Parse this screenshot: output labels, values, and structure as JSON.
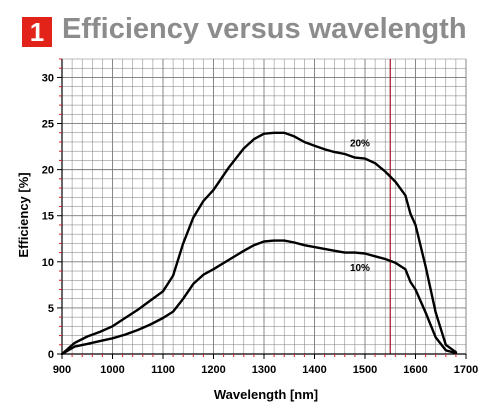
{
  "header": {
    "badge": "1",
    "title": "Efficiency versus wavelength"
  },
  "colors": {
    "grid": "#7a7a7a",
    "axis_minor_ticks": "#d0202a",
    "marker_line": "#a01020",
    "curve": "#000000",
    "badge": "#e2231a",
    "title": "#8c8c8c"
  },
  "chart_data": {
    "type": "line",
    "xlabel": "Wavelength [nm]",
    "ylabel": "Efficiency [%]",
    "xlim": [
      900,
      1700
    ],
    "ylim": [
      0,
      32
    ],
    "xticks": [
      "900",
      "1000",
      "1100",
      "1200",
      "1300",
      "1400",
      "1500",
      "1600",
      "1700"
    ],
    "yticks": [
      "0",
      "5",
      "10",
      "15",
      "20",
      "25",
      "30"
    ],
    "grid": true,
    "vertical_marker_x": 1550,
    "series": [
      {
        "name": "20%",
        "x": [
          900,
          925,
          950,
          975,
          1000,
          1025,
          1050,
          1075,
          1100,
          1120,
          1140,
          1160,
          1180,
          1200,
          1230,
          1260,
          1280,
          1300,
          1320,
          1340,
          1360,
          1380,
          1400,
          1420,
          1440,
          1460,
          1480,
          1500,
          1520,
          1540,
          1560,
          1580,
          1590,
          1600,
          1620,
          1640,
          1660,
          1680
        ],
        "y": [
          0,
          1.2,
          1.9,
          2.4,
          3.0,
          3.9,
          4.8,
          5.8,
          6.8,
          8.5,
          12,
          14.8,
          16.6,
          17.8,
          20.2,
          22.3,
          23.3,
          23.9,
          24.0,
          24.0,
          23.6,
          23.0,
          22.6,
          22.2,
          21.9,
          21.7,
          21.3,
          21.2,
          20.7,
          19.8,
          18.7,
          17.2,
          15.2,
          14.0,
          9.5,
          4.5,
          1.0,
          0.2
        ]
      },
      {
        "name": "10%",
        "x": [
          900,
          925,
          950,
          975,
          1000,
          1025,
          1050,
          1075,
          1100,
          1120,
          1140,
          1160,
          1180,
          1200,
          1230,
          1260,
          1280,
          1300,
          1320,
          1340,
          1360,
          1380,
          1400,
          1420,
          1440,
          1460,
          1480,
          1500,
          1520,
          1540,
          1560,
          1580,
          1590,
          1600,
          1620,
          1640,
          1660,
          1680
        ],
        "y": [
          0,
          0.8,
          1.1,
          1.4,
          1.7,
          2.1,
          2.6,
          3.2,
          3.9,
          4.6,
          6.0,
          7.6,
          8.6,
          9.2,
          10.2,
          11.2,
          11.8,
          12.2,
          12.3,
          12.3,
          12.1,
          11.8,
          11.6,
          11.4,
          11.2,
          11.0,
          11.0,
          10.9,
          10.6,
          10.3,
          9.9,
          9.2,
          7.8,
          7.0,
          4.5,
          1.8,
          0.4,
          0.1
        ]
      }
    ]
  }
}
